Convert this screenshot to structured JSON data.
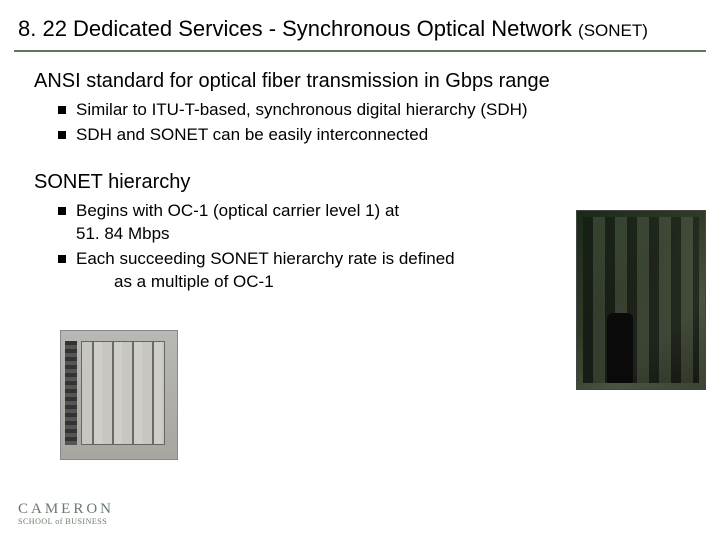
{
  "title_main": "8. 22  Dedicated Services - Synchronous Optical Network ",
  "title_suffix": "(SONET)",
  "section1": {
    "heading": "ANSI standard for optical fiber transmission in Gbps range",
    "bullets": [
      "Similar to ITU-T-based, synchronous digital hierarchy (SDH)",
      "SDH and SONET can be easily interconnected"
    ]
  },
  "section2": {
    "heading": "SONET hierarchy",
    "bullets": [
      {
        "line": "Begins with OC-1 (optical carrier level 1) at",
        "cont": "51. 84 Mbps"
      },
      {
        "line": "Each succeeding SONET hierarchy rate is defined",
        "cont": "as a multiple of OC-1"
      }
    ]
  },
  "footer": {
    "line1": "CAMERON",
    "line2": "SCHOOL of BUSINESS"
  },
  "colors": {
    "rule": "#5a7a5a",
    "text": "#000000",
    "logo": "#6a7a6a"
  }
}
